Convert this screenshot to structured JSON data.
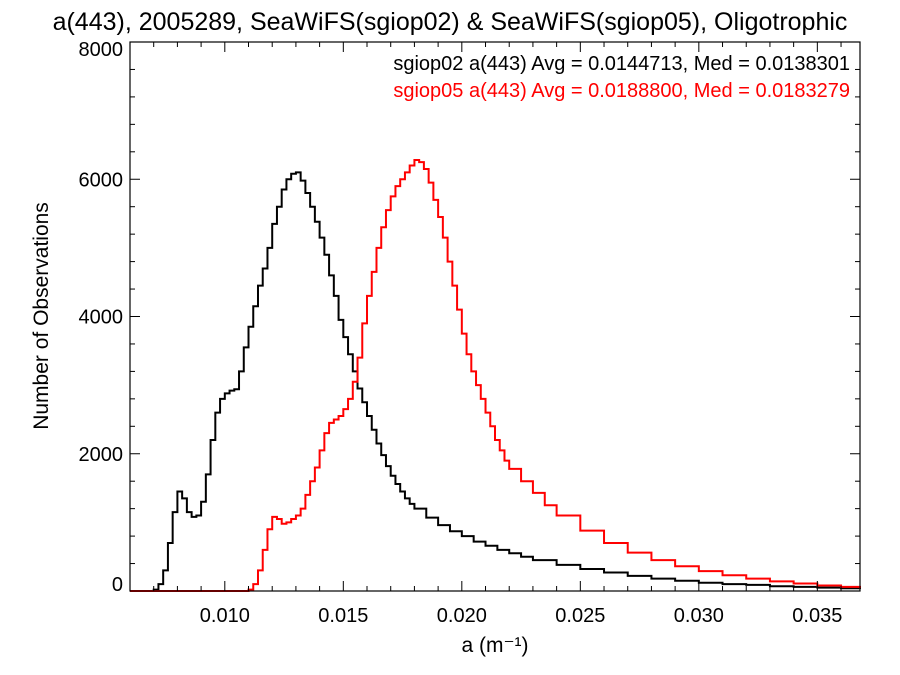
{
  "chart_data": {
    "type": "line",
    "title": "a(443), 2005289, SeaWiFS(sgiop02) & SeaWiFS(sgiop05), Oligotrophic",
    "xlabel": "a (m⁻¹)",
    "ylabel": "Number of Observations",
    "xlim": [
      0.006,
      0.0368
    ],
    "ylim": [
      0,
      8000
    ],
    "x_ticks": [
      0.01,
      0.015,
      0.02,
      0.025,
      0.03,
      0.035
    ],
    "x_tick_labels": [
      "0.010",
      "0.015",
      "0.020",
      "0.025",
      "0.030",
      "0.035"
    ],
    "y_ticks": [
      0,
      2000,
      4000,
      6000,
      8000
    ],
    "y_tick_labels": [
      "0",
      "2000",
      "4000",
      "6000",
      "8000"
    ],
    "grid": false,
    "annotations": [
      {
        "text": "sgiop02 a(443) Avg = 0.0144713, Med = 0.0138301",
        "color": "#000000"
      },
      {
        "text": "sgiop05 a(443) Avg = 0.0188800, Med = 0.0183279",
        "color": "#ff0000"
      }
    ],
    "series": [
      {
        "color": "#000000",
        "x": [
          0.006,
          0.0068,
          0.007,
          0.0072,
          0.0074,
          0.0076,
          0.0078,
          0.008,
          0.0082,
          0.0084,
          0.0086,
          0.0088,
          0.009,
          0.0092,
          0.0094,
          0.0096,
          0.0098,
          0.01,
          0.0102,
          0.0104,
          0.0106,
          0.0108,
          0.011,
          0.0112,
          0.0114,
          0.0116,
          0.0118,
          0.012,
          0.0122,
          0.0124,
          0.0126,
          0.0128,
          0.013,
          0.0132,
          0.0134,
          0.0136,
          0.0138,
          0.014,
          0.0142,
          0.0144,
          0.0146,
          0.0148,
          0.015,
          0.0152,
          0.0154,
          0.0156,
          0.0158,
          0.016,
          0.0162,
          0.0164,
          0.0166,
          0.0168,
          0.017,
          0.0172,
          0.0174,
          0.0176,
          0.0178,
          0.018,
          0.0185,
          0.019,
          0.0195,
          0.02,
          0.0205,
          0.021,
          0.0215,
          0.022,
          0.0225,
          0.023,
          0.024,
          0.025,
          0.026,
          0.027,
          0.028,
          0.029,
          0.03,
          0.031,
          0.032,
          0.033,
          0.034,
          0.035,
          0.036,
          0.0368
        ],
        "y": [
          0,
          0,
          20,
          100,
          300,
          700,
          1150,
          1450,
          1350,
          1150,
          1080,
          1100,
          1300,
          1700,
          2200,
          2600,
          2800,
          2880,
          2920,
          2940,
          3200,
          3550,
          3850,
          4150,
          4450,
          4700,
          5000,
          5350,
          5600,
          5850,
          6000,
          6080,
          6100,
          5980,
          5800,
          5600,
          5380,
          5150,
          4900,
          4600,
          4300,
          3950,
          3700,
          3450,
          3200,
          2950,
          2750,
          2550,
          2350,
          2150,
          1980,
          1820,
          1680,
          1560,
          1450,
          1350,
          1270,
          1200,
          1070,
          960,
          870,
          800,
          720,
          660,
          600,
          550,
          500,
          450,
          380,
          320,
          270,
          220,
          180,
          150,
          120,
          100,
          90,
          70,
          60,
          50,
          40,
          30
        ]
      },
      {
        "color": "#ff0000",
        "x": [
          0.006,
          0.0105,
          0.011,
          0.0112,
          0.0114,
          0.0116,
          0.0118,
          0.012,
          0.0122,
          0.0124,
          0.0126,
          0.0128,
          0.013,
          0.0132,
          0.0134,
          0.0136,
          0.0138,
          0.014,
          0.0142,
          0.0144,
          0.0146,
          0.0148,
          0.015,
          0.0152,
          0.0154,
          0.0156,
          0.0158,
          0.016,
          0.0162,
          0.0164,
          0.0166,
          0.0168,
          0.017,
          0.0172,
          0.0174,
          0.0176,
          0.0178,
          0.018,
          0.0182,
          0.0184,
          0.0186,
          0.0188,
          0.019,
          0.0192,
          0.0194,
          0.0196,
          0.0198,
          0.02,
          0.0202,
          0.0204,
          0.0206,
          0.0208,
          0.021,
          0.0212,
          0.0214,
          0.0216,
          0.0218,
          0.022,
          0.0225,
          0.023,
          0.0235,
          0.024,
          0.025,
          0.026,
          0.027,
          0.028,
          0.029,
          0.03,
          0.031,
          0.032,
          0.033,
          0.034,
          0.035,
          0.036,
          0.0368
        ],
        "y": [
          0,
          0,
          20,
          100,
          300,
          600,
          900,
          1080,
          1050,
          980,
          1000,
          1050,
          1100,
          1200,
          1400,
          1600,
          1800,
          2050,
          2300,
          2450,
          2500,
          2550,
          2650,
          2800,
          3050,
          3400,
          3900,
          4300,
          4650,
          5000,
          5300,
          5550,
          5750,
          5900,
          6000,
          6100,
          6200,
          6280,
          6250,
          6150,
          5950,
          5700,
          5450,
          5150,
          4800,
          4450,
          4100,
          3750,
          3450,
          3200,
          3000,
          2800,
          2600,
          2400,
          2200,
          2050,
          1900,
          1780,
          1600,
          1430,
          1250,
          1100,
          880,
          700,
          560,
          450,
          360,
          290,
          230,
          180,
          140,
          110,
          80,
          60,
          40
        ]
      }
    ]
  }
}
